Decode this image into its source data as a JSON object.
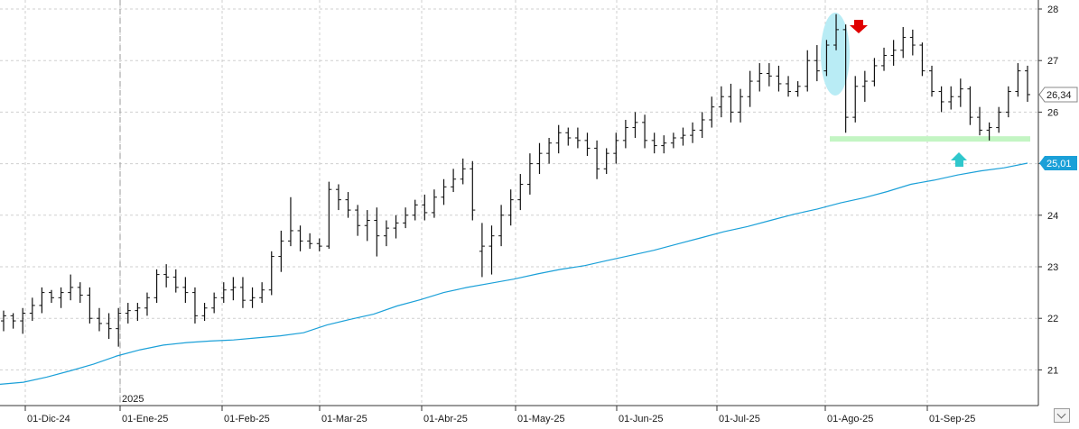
{
  "chart_data": {
    "type": "ohlc",
    "y_ticks": [
      "21",
      "22",
      "23",
      "24",
      "25",
      "26",
      "27",
      "28"
    ],
    "x_ticks": [
      "01-Dic-24",
      "01-Ene-25",
      "01-Feb-25",
      "01-Mar-25",
      "01-Abr-25",
      "01-May-25",
      "01-Jun-25",
      "01-Jul-25",
      "01-Ago-25",
      "01-Sep-25"
    ],
    "year_label": "2025",
    "ylim": [
      20.5,
      28.2
    ],
    "grid": true,
    "last_price_label": "26,34",
    "ma_label": "25,01",
    "price_bars": [
      [
        21.95,
        22.15,
        21.75,
        22.05
      ],
      [
        22.05,
        22.1,
        21.8,
        21.95
      ],
      [
        21.95,
        22.2,
        21.7,
        22.1
      ],
      [
        22.1,
        22.4,
        21.95,
        22.25
      ],
      [
        22.25,
        22.6,
        22.1,
        22.5
      ],
      [
        22.5,
        22.55,
        22.3,
        22.4
      ],
      [
        22.4,
        22.6,
        22.2,
        22.5
      ],
      [
        22.5,
        22.85,
        22.35,
        22.6
      ],
      [
        22.6,
        22.7,
        22.3,
        22.45
      ],
      [
        22.45,
        22.6,
        21.9,
        22.0
      ],
      [
        22.0,
        22.2,
        21.75,
        21.9
      ],
      [
        21.9,
        22.1,
        21.6,
        21.8
      ],
      [
        21.8,
        22.2,
        21.45,
        22.1
      ],
      [
        22.1,
        22.3,
        21.9,
        22.15
      ],
      [
        22.15,
        22.3,
        21.95,
        22.2
      ],
      [
        22.2,
        22.5,
        22.05,
        22.4
      ],
      [
        22.4,
        22.95,
        22.3,
        22.85
      ],
      [
        22.85,
        23.05,
        22.6,
        22.8
      ],
      [
        22.8,
        22.95,
        22.5,
        22.6
      ],
      [
        22.6,
        22.8,
        22.3,
        22.5
      ],
      [
        22.5,
        22.6,
        21.9,
        22.05
      ],
      [
        22.05,
        22.3,
        21.95,
        22.2
      ],
      [
        22.2,
        22.5,
        22.1,
        22.4
      ],
      [
        22.4,
        22.7,
        22.3,
        22.55
      ],
      [
        22.55,
        22.8,
        22.35,
        22.6
      ],
      [
        22.6,
        22.8,
        22.2,
        22.35
      ],
      [
        22.35,
        22.6,
        22.2,
        22.4
      ],
      [
        22.4,
        22.7,
        22.3,
        22.55
      ],
      [
        22.55,
        23.3,
        22.45,
        23.2
      ],
      [
        23.2,
        23.7,
        22.9,
        23.5
      ],
      [
        23.5,
        24.35,
        23.4,
        23.7
      ],
      [
        23.7,
        23.8,
        23.3,
        23.5
      ],
      [
        23.5,
        23.65,
        23.35,
        23.45
      ],
      [
        23.45,
        23.55,
        23.3,
        23.4
      ],
      [
        23.4,
        24.65,
        23.35,
        24.5
      ],
      [
        24.5,
        24.6,
        24.1,
        24.3
      ],
      [
        24.3,
        24.45,
        23.95,
        24.1
      ],
      [
        24.1,
        24.2,
        23.6,
        23.8
      ],
      [
        23.8,
        24.1,
        23.5,
        23.9
      ],
      [
        23.9,
        24.15,
        23.2,
        23.6
      ],
      [
        23.6,
        23.9,
        23.4,
        23.75
      ],
      [
        23.75,
        24.0,
        23.55,
        23.85
      ],
      [
        23.85,
        24.15,
        23.75,
        24.0
      ],
      [
        24.0,
        24.3,
        23.9,
        24.2
      ],
      [
        24.2,
        24.4,
        23.9,
        24.05
      ],
      [
        24.05,
        24.5,
        23.95,
        24.35
      ],
      [
        24.35,
        24.7,
        24.2,
        24.55
      ],
      [
        24.55,
        24.9,
        24.45,
        24.7
      ],
      [
        24.7,
        25.1,
        24.6,
        24.9
      ],
      [
        24.9,
        25.05,
        23.9,
        24.1
      ],
      [
        23.3,
        23.85,
        22.8,
        23.4
      ],
      [
        23.4,
        23.8,
        22.85,
        23.6
      ],
      [
        23.6,
        24.2,
        23.4,
        24.0
      ],
      [
        24.0,
        24.5,
        23.8,
        24.3
      ],
      [
        24.3,
        24.8,
        24.1,
        24.6
      ],
      [
        24.6,
        25.2,
        24.4,
        25.0
      ],
      [
        25.0,
        25.4,
        24.8,
        25.2
      ],
      [
        25.2,
        25.5,
        25.0,
        25.4
      ],
      [
        25.4,
        25.75,
        25.2,
        25.6
      ],
      [
        25.6,
        25.7,
        25.35,
        25.5
      ],
      [
        25.5,
        25.7,
        25.3,
        25.45
      ],
      [
        25.45,
        25.6,
        25.15,
        25.3
      ],
      [
        25.3,
        25.45,
        24.7,
        24.9
      ],
      [
        24.9,
        25.3,
        24.8,
        25.2
      ],
      [
        25.2,
        25.6,
        25.0,
        25.45
      ],
      [
        25.45,
        25.85,
        25.3,
        25.7
      ],
      [
        25.7,
        26.0,
        25.5,
        25.8
      ],
      [
        25.8,
        25.95,
        25.3,
        25.45
      ],
      [
        25.45,
        25.6,
        25.2,
        25.35
      ],
      [
        25.35,
        25.55,
        25.2,
        25.4
      ],
      [
        25.4,
        25.6,
        25.3,
        25.5
      ],
      [
        25.5,
        25.7,
        25.35,
        25.55
      ],
      [
        25.55,
        25.8,
        25.4,
        25.65
      ],
      [
        25.65,
        26.0,
        25.5,
        25.85
      ],
      [
        25.85,
        26.3,
        25.7,
        26.1
      ],
      [
        26.1,
        26.5,
        25.9,
        26.3
      ],
      [
        26.3,
        26.55,
        25.8,
        26.0
      ],
      [
        26.0,
        26.45,
        25.8,
        26.3
      ],
      [
        26.3,
        26.8,
        26.1,
        26.6
      ],
      [
        26.6,
        26.95,
        26.4,
        26.75
      ],
      [
        26.75,
        26.95,
        26.5,
        26.7
      ],
      [
        26.7,
        26.9,
        26.4,
        26.55
      ],
      [
        26.55,
        26.7,
        26.3,
        26.4
      ],
      [
        26.4,
        26.6,
        26.3,
        26.5
      ],
      [
        26.5,
        27.2,
        26.4,
        27.0
      ],
      [
        27.0,
        27.3,
        26.6,
        26.8
      ],
      [
        26.8,
        27.4,
        26.7,
        27.3
      ],
      [
        27.3,
        27.9,
        27.2,
        27.6
      ],
      [
        27.6,
        27.7,
        25.6,
        25.9
      ],
      [
        25.9,
        26.7,
        25.8,
        26.5
      ],
      [
        26.5,
        26.8,
        26.2,
        26.6
      ],
      [
        26.6,
        27.05,
        26.5,
        26.9
      ],
      [
        26.9,
        27.25,
        26.8,
        27.1
      ],
      [
        27.1,
        27.4,
        26.9,
        27.2
      ],
      [
        27.2,
        27.65,
        27.05,
        27.45
      ],
      [
        27.45,
        27.6,
        27.1,
        27.3
      ],
      [
        27.3,
        27.35,
        26.7,
        26.8
      ],
      [
        26.8,
        26.9,
        26.3,
        26.4
      ],
      [
        26.4,
        26.5,
        26.0,
        26.2
      ],
      [
        26.2,
        26.5,
        26.05,
        26.3
      ],
      [
        26.3,
        26.65,
        26.1,
        26.45
      ],
      [
        26.45,
        26.5,
        25.75,
        25.9
      ],
      [
        25.9,
        26.1,
        25.55,
        25.65
      ],
      [
        25.65,
        25.8,
        25.45,
        25.7
      ],
      [
        25.7,
        26.1,
        25.6,
        26.0
      ],
      [
        26.0,
        26.5,
        25.9,
        26.4
      ],
      [
        26.4,
        26.95,
        26.3,
        26.8
      ],
      [
        26.8,
        26.9,
        26.2,
        26.34
      ]
    ],
    "ma_series": [
      20.72,
      20.76,
      20.86,
      20.98,
      21.11,
      21.27,
      21.39,
      21.48,
      21.53,
      21.56,
      21.58,
      21.62,
      21.66,
      21.72,
      21.87,
      21.98,
      22.08,
      22.24,
      22.36,
      22.5,
      22.6,
      22.68,
      22.76,
      22.86,
      22.95,
      23.02,
      23.12,
      23.22,
      23.32,
      23.44,
      23.56,
      23.68,
      23.78,
      23.9,
      24.02,
      24.12,
      24.24,
      24.34,
      24.46,
      24.6,
      24.68,
      24.78,
      24.86,
      24.92,
      25.01
    ],
    "annotations": {
      "down_arrow_color": "#e00000",
      "up_arrow_color": "#2fc7cc",
      "highlight_color": "#b9ecf5",
      "support_level": 25.48,
      "support_color": "#c3f5c3"
    },
    "ma_color": "#1ba0d8",
    "last_price_tag_color": "#8a8a8a",
    "ma_tag_color": "#1ba0d8"
  }
}
